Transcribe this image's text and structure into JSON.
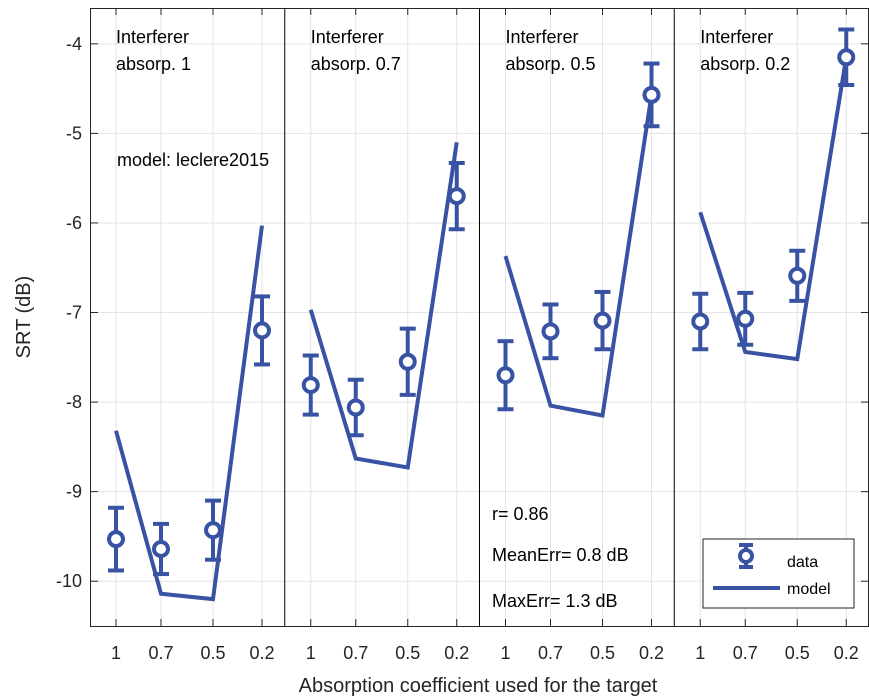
{
  "chart_data": {
    "type": "line",
    "xlabel": "Absorption coefficient used for the target",
    "ylabel": "SRT (dB)",
    "ylim": [
      -10.5,
      -3.6
    ],
    "yticks": [
      -10,
      -9,
      -8,
      -7,
      -6,
      -5,
      -4
    ],
    "ytick_labels": [
      "-10",
      "-9",
      "-8",
      "-7",
      "-6",
      "-5",
      "-4"
    ],
    "categories": [
      "1",
      "0.7",
      "0.5",
      "0.2"
    ],
    "grid": true,
    "legend_position": "bottom-right",
    "legend": {
      "data_label": "data",
      "model_label": "model"
    },
    "color": "#3953a4",
    "panels": [
      {
        "title_line1": "Interferer",
        "title_line2": "absorp. 1",
        "data": [
          -9.53,
          -9.64,
          -9.43,
          -7.2
        ],
        "error": [
          0.35,
          0.28,
          0.33,
          0.38
        ],
        "model": [
          -8.32,
          -10.14,
          -10.2,
          -6.03
        ]
      },
      {
        "title_line1": "Interferer",
        "title_line2": "absorp. 0.7",
        "data": [
          -7.81,
          -8.06,
          -7.55,
          -5.7
        ],
        "error": [
          0.33,
          0.31,
          0.37,
          0.37
        ],
        "model": [
          -6.97,
          -8.63,
          -8.73,
          -5.1
        ]
      },
      {
        "title_line1": "Interferer",
        "title_line2": "absorp. 0.5",
        "data": [
          -7.7,
          -7.21,
          -7.09,
          -4.57
        ],
        "error": [
          0.38,
          0.3,
          0.32,
          0.35
        ],
        "model": [
          -6.37,
          -8.04,
          -8.15,
          -4.57
        ]
      },
      {
        "title_line1": "Interferer",
        "title_line2": "absorp. 0.2",
        "data": [
          -7.1,
          -7.07,
          -6.59,
          -4.15
        ],
        "error": [
          0.31,
          0.29,
          0.28,
          0.31
        ],
        "model": [
          -5.88,
          -7.44,
          -7.52,
          -4.15
        ]
      }
    ],
    "annotations": {
      "model_name": "model: leclere2015",
      "r": "r= 0.86",
      "mean_err": "MeanErr= 0.8 dB",
      "max_err": "MaxErr= 1.3 dB"
    }
  }
}
